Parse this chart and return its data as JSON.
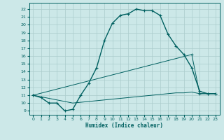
{
  "xlabel": "Humidex (Indice chaleur)",
  "bg_color": "#cce8e8",
  "line_color": "#006060",
  "grid_color": "#aacccc",
  "xlim": [
    -0.5,
    23.5
  ],
  "ylim": [
    8.5,
    22.8
  ],
  "xticks": [
    0,
    1,
    2,
    3,
    4,
    5,
    6,
    7,
    8,
    9,
    10,
    11,
    12,
    13,
    14,
    15,
    16,
    17,
    18,
    19,
    20,
    21,
    22,
    23
  ],
  "yticks": [
    9,
    10,
    11,
    12,
    13,
    14,
    15,
    16,
    17,
    18,
    19,
    20,
    21,
    22
  ],
  "line1_x": [
    0,
    1,
    2,
    3,
    4,
    5,
    6,
    7,
    8,
    9,
    10,
    11,
    12,
    13,
    14,
    15,
    16,
    17,
    18,
    19,
    20,
    21,
    22,
    23
  ],
  "line1_y": [
    11.0,
    10.7,
    10.0,
    10.0,
    9.0,
    9.2,
    11.0,
    12.5,
    14.5,
    18.0,
    20.2,
    21.2,
    21.4,
    22.0,
    21.8,
    21.8,
    21.2,
    18.8,
    17.3,
    16.2,
    14.5,
    11.5,
    11.2,
    11.2
  ],
  "line2_x": [
    0,
    20,
    21,
    22,
    23
  ],
  "line2_y": [
    11.0,
    16.2,
    11.2,
    11.2,
    11.2
  ],
  "line3_x": [
    0,
    5,
    6,
    7,
    8,
    9,
    10,
    11,
    12,
    13,
    14,
    15,
    16,
    17,
    18,
    19,
    20,
    21,
    22,
    23
  ],
  "line3_y": [
    11.0,
    10.0,
    10.1,
    10.2,
    10.3,
    10.4,
    10.5,
    10.6,
    10.7,
    10.8,
    10.9,
    11.0,
    11.1,
    11.2,
    11.3,
    11.3,
    11.4,
    11.2,
    11.2,
    11.2
  ]
}
